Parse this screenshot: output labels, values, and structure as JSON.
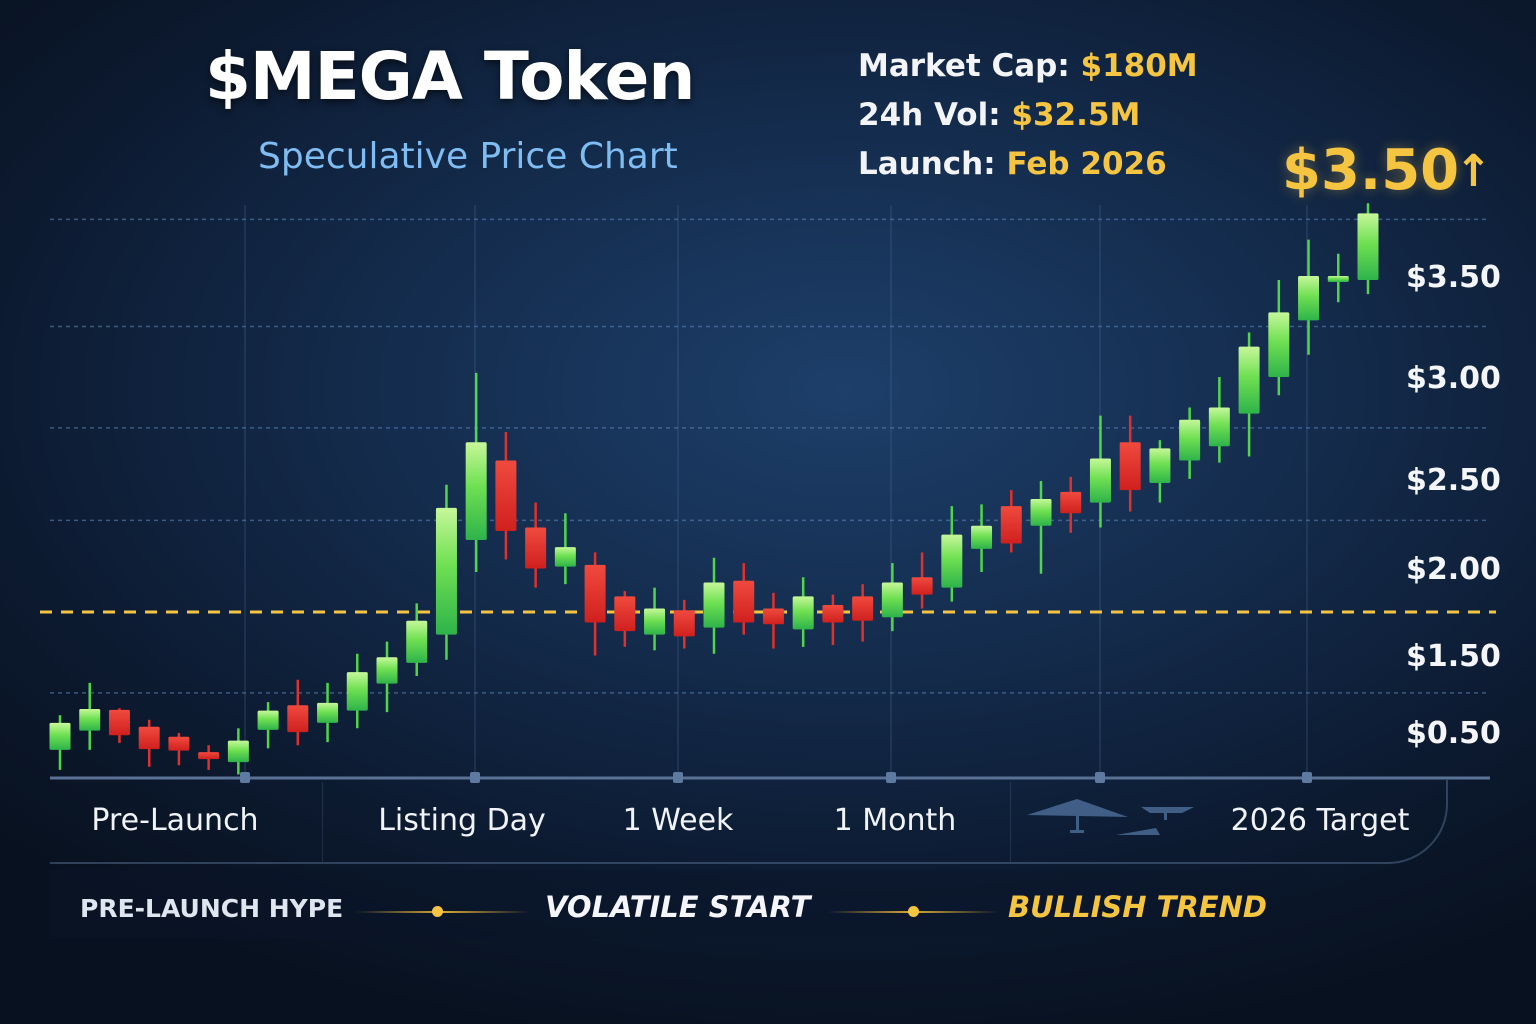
{
  "header": {
    "title": "$MEGA Token",
    "subtitle": "Speculative Price Chart",
    "stats": [
      {
        "label": "Market Cap:",
        "value": "$180M"
      },
      {
        "label": "24h Vol:",
        "value": "$32.5M"
      },
      {
        "label": "Launch:",
        "value": "Feb 2026"
      }
    ],
    "current_price": "$3.50",
    "price_arrow": "↑"
  },
  "colors": {
    "up": "#4fd64a",
    "down": "#e8302c",
    "accent": "#f5c542",
    "subtitle": "#7fbcf2"
  },
  "chart_data": {
    "type": "candlestick",
    "title": "$MEGA Token",
    "subtitle": "Speculative Price Chart",
    "y_ticks": [
      "$3.50",
      "$3.00",
      "$2.50",
      "$2.00",
      "$1.50",
      "$0.50"
    ],
    "y_tick_values": [
      3.5,
      3.0,
      2.5,
      2.0,
      1.5,
      0.5
    ],
    "x_labels": [
      "Pre-Launch",
      "Listing Day",
      "1 Week",
      "1 Month",
      "2026 Target"
    ],
    "grid": true,
    "gridline_values": [
      3.8,
      3.27,
      2.77,
      2.29,
      1.06
    ],
    "reference_line": {
      "value": 1.77,
      "style": "dashed",
      "color": "#f5c542"
    },
    "candles": [
      {
        "o": 0.32,
        "h": 0.77,
        "l": 0.06,
        "c": 0.67
      },
      {
        "o": 0.57,
        "h": 1.19,
        "l": 0.32,
        "c": 0.85
      },
      {
        "o": 0.84,
        "h": 0.86,
        "l": 0.41,
        "c": 0.51
      },
      {
        "o": 0.62,
        "h": 0.71,
        "l": 0.1,
        "c": 0.33
      },
      {
        "o": 0.49,
        "h": 0.54,
        "l": 0.12,
        "c": 0.31
      },
      {
        "o": 0.29,
        "h": 0.38,
        "l": 0.06,
        "c": 0.2
      },
      {
        "o": 0.16,
        "h": 0.6,
        "l": 0.0,
        "c": 0.44
      },
      {
        "o": 0.58,
        "h": 0.94,
        "l": 0.34,
        "c": 0.83
      },
      {
        "o": 0.9,
        "h": 1.23,
        "l": 0.38,
        "c": 0.55
      },
      {
        "o": 0.67,
        "h": 1.19,
        "l": 0.42,
        "c": 0.93
      },
      {
        "o": 0.83,
        "h": 1.53,
        "l": 0.6,
        "c": 1.33
      },
      {
        "o": 1.18,
        "h": 1.6,
        "l": 0.81,
        "c": 1.51
      },
      {
        "o": 1.45,
        "h": 1.82,
        "l": 1.28,
        "c": 1.72
      },
      {
        "o": 1.64,
        "h": 2.49,
        "l": 1.49,
        "c": 2.36
      },
      {
        "o": 2.18,
        "h": 3.04,
        "l": 2.0,
        "c": 2.7
      },
      {
        "o": 2.61,
        "h": 2.75,
        "l": 2.07,
        "c": 2.23
      },
      {
        "o": 2.25,
        "h": 2.39,
        "l": 1.91,
        "c": 2.02
      },
      {
        "o": 2.03,
        "h": 2.33,
        "l": 1.93,
        "c": 2.14
      },
      {
        "o": 2.04,
        "h": 2.11,
        "l": 1.52,
        "c": 1.71
      },
      {
        "o": 1.86,
        "h": 1.89,
        "l": 1.57,
        "c": 1.66
      },
      {
        "o": 1.64,
        "h": 1.91,
        "l": 1.55,
        "c": 1.79
      },
      {
        "o": 1.78,
        "h": 1.84,
        "l": 1.56,
        "c": 1.63
      },
      {
        "o": 1.68,
        "h": 2.08,
        "l": 1.53,
        "c": 1.94
      },
      {
        "o": 1.95,
        "h": 2.05,
        "l": 1.64,
        "c": 1.71
      },
      {
        "o": 1.79,
        "h": 1.88,
        "l": 1.56,
        "c": 1.7
      },
      {
        "o": 1.67,
        "h": 1.97,
        "l": 1.57,
        "c": 1.86
      },
      {
        "o": 1.81,
        "h": 1.87,
        "l": 1.58,
        "c": 1.71
      },
      {
        "o": 1.86,
        "h": 1.93,
        "l": 1.6,
        "c": 1.72
      },
      {
        "o": 1.74,
        "h": 2.05,
        "l": 1.66,
        "c": 1.94
      },
      {
        "o": 1.97,
        "h": 2.11,
        "l": 1.79,
        "c": 1.87
      },
      {
        "o": 1.91,
        "h": 2.37,
        "l": 1.83,
        "c": 2.21
      },
      {
        "o": 2.13,
        "h": 2.38,
        "l": 2.0,
        "c": 2.26
      },
      {
        "o": 2.37,
        "h": 2.46,
        "l": 2.11,
        "c": 2.16
      },
      {
        "o": 2.26,
        "h": 2.51,
        "l": 1.99,
        "c": 2.41
      },
      {
        "o": 2.45,
        "h": 2.53,
        "l": 2.22,
        "c": 2.33
      },
      {
        "o": 2.39,
        "h": 2.83,
        "l": 2.25,
        "c": 2.62
      },
      {
        "o": 2.7,
        "h": 2.83,
        "l": 2.34,
        "c": 2.46
      },
      {
        "o": 2.5,
        "h": 2.71,
        "l": 2.39,
        "c": 2.67
      },
      {
        "o": 2.61,
        "h": 2.87,
        "l": 2.52,
        "c": 2.81
      },
      {
        "o": 2.68,
        "h": 3.02,
        "l": 2.6,
        "c": 2.87
      },
      {
        "o": 2.84,
        "h": 3.24,
        "l": 2.63,
        "c": 3.17
      },
      {
        "o": 3.02,
        "h": 3.5,
        "l": 2.93,
        "c": 3.34
      },
      {
        "o": 3.3,
        "h": 3.7,
        "l": 3.13,
        "c": 3.52
      },
      {
        "o": 3.49,
        "h": 3.63,
        "l": 3.39,
        "c": 3.52
      },
      {
        "o": 3.5,
        "h": 3.88,
        "l": 3.43,
        "c": 3.83
      }
    ]
  },
  "phases": [
    "PRE-LAUNCH HYPE",
    "VOLATILE START",
    "BULLISH TREND"
  ]
}
